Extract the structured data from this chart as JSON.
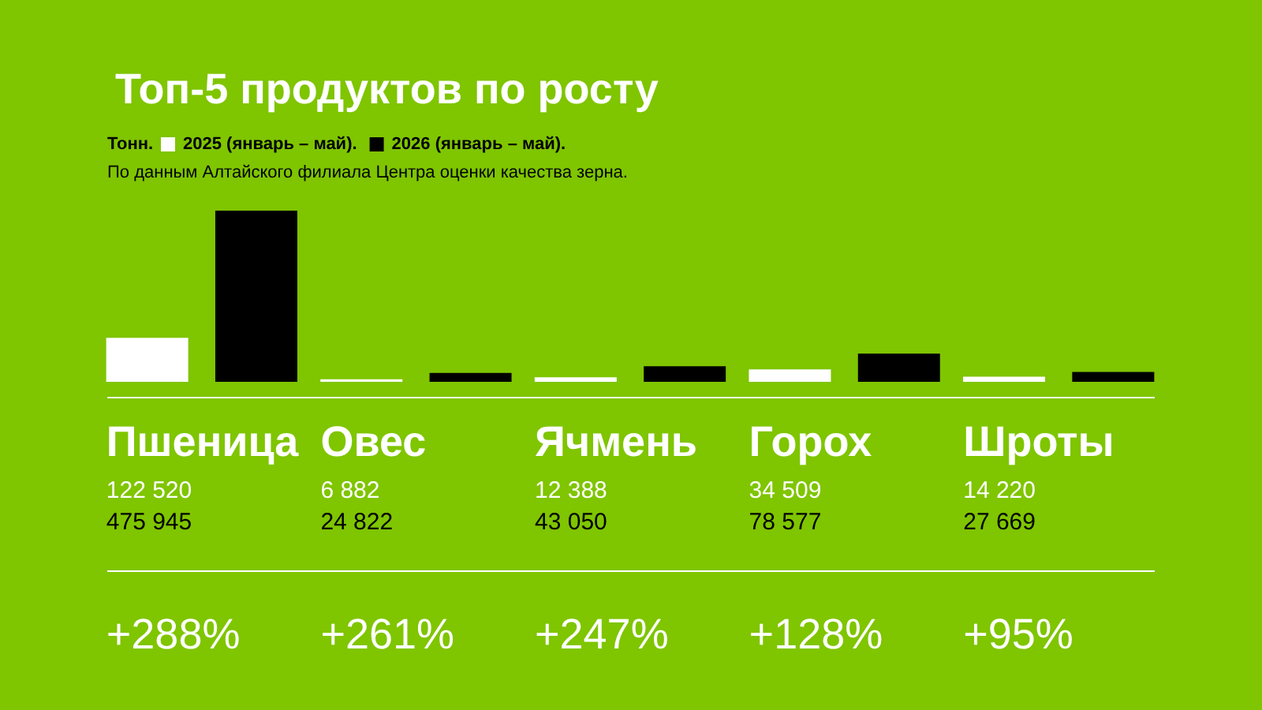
{
  "chart_data": {
    "type": "bar",
    "title": "Топ-5 продуктов по росту",
    "ylabel": "Тонн.",
    "legend": "top left",
    "categories": [
      "Пшеница",
      "Овес",
      "Ячмень",
      "Горох",
      "Шроты"
    ],
    "series": [
      {
        "name": "2025 (январь – май).",
        "color": "#ffffff",
        "values": [
          122520,
          6882,
          12388,
          34509,
          14220
        ],
        "value_labels": [
          "122 520",
          "6 882",
          "12 388",
          "34 509",
          "14 220"
        ]
      },
      {
        "name": "2026 (январь – май).",
        "color": "#000000",
        "values": [
          475945,
          24822,
          43050,
          78577,
          27669
        ],
        "value_labels": [
          "475 945",
          "24 822",
          "43 050",
          "78 577",
          "27 669"
        ]
      }
    ],
    "annotations": [
      "По данным Алтайского филиала Центра оценки качества зерна.",
      "+288%",
      "+261%",
      "+247%",
      "+128%",
      "+95%"
    ]
  }
}
